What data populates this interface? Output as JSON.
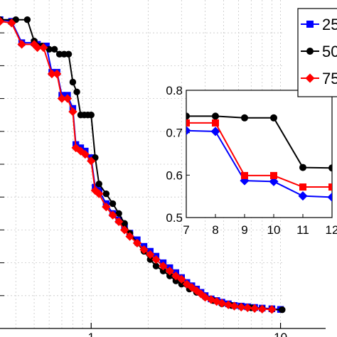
{
  "chart_data": [
    {
      "id": "main",
      "type": "line",
      "x_scale": "log",
      "x_ticks": [
        {
          "value": 1,
          "label": "1"
        },
        {
          "value": 10,
          "label": "10"
        }
      ],
      "x_range": [
        0.33,
        10.3
      ],
      "y_range": [
        0,
        1.0
      ],
      "grid": true,
      "legend": {
        "placement": "top-right",
        "entries": [
          {
            "label": "25",
            "series": 0
          },
          {
            "label": "50",
            "series": 1
          },
          {
            "label": "75",
            "series": 2
          }
        ]
      },
      "series": [
        {
          "color": "#0000ff",
          "marker": "square",
          "points": [
            [
              0.33,
              0.94
            ],
            [
              0.38,
              0.935
            ],
            [
              0.43,
              0.87
            ],
            [
              0.5,
              0.87
            ],
            [
              0.52,
              0.865
            ],
            [
              0.58,
              0.86
            ],
            [
              0.62,
              0.78
            ],
            [
              0.66,
              0.78
            ],
            [
              0.7,
              0.71
            ],
            [
              0.75,
              0.71
            ],
            [
              0.8,
              0.67
            ],
            [
              0.83,
              0.56
            ],
            [
              0.88,
              0.55
            ],
            [
              0.93,
              0.54
            ],
            [
              1.0,
              0.52
            ],
            [
              1.05,
              0.43
            ],
            [
              1.1,
              0.42
            ],
            [
              1.2,
              0.38
            ],
            [
              1.3,
              0.35
            ],
            [
              1.4,
              0.33
            ],
            [
              1.5,
              0.31
            ],
            [
              1.6,
              0.29
            ],
            [
              1.75,
              0.27
            ],
            [
              1.9,
              0.25
            ],
            [
              2.05,
              0.235
            ],
            [
              2.2,
              0.22
            ],
            [
              2.4,
              0.2
            ],
            [
              2.6,
              0.185
            ],
            [
              2.8,
              0.17
            ],
            [
              3.0,
              0.155
            ],
            [
              3.2,
              0.14
            ],
            [
              3.4,
              0.13
            ],
            [
              3.6,
              0.12
            ],
            [
              3.8,
              0.11
            ],
            [
              4.0,
              0.1
            ],
            [
              4.3,
              0.09
            ],
            [
              4.6,
              0.085
            ],
            [
              4.9,
              0.08
            ],
            [
              5.3,
              0.075
            ],
            [
              5.7,
              0.07
            ],
            [
              6.2,
              0.068
            ],
            [
              6.7,
              0.066
            ],
            [
              7.3,
              0.064
            ],
            [
              8.0,
              0.062
            ],
            [
              9.0,
              0.06
            ],
            [
              10.0,
              0.058
            ]
          ]
        },
        {
          "color": "#000000",
          "marker": "circle",
          "points": [
            [
              0.33,
              0.94
            ],
            [
              0.4,
              0.94
            ],
            [
              0.46,
              0.94
            ],
            [
              0.5,
              0.875
            ],
            [
              0.55,
              0.86
            ],
            [
              0.6,
              0.85
            ],
            [
              0.64,
              0.85
            ],
            [
              0.68,
              0.835
            ],
            [
              0.72,
              0.835
            ],
            [
              0.76,
              0.835
            ],
            [
              0.8,
              0.75
            ],
            [
              0.84,
              0.72
            ],
            [
              0.88,
              0.65
            ],
            [
              0.92,
              0.65
            ],
            [
              0.96,
              0.65
            ],
            [
              1.0,
              0.65
            ],
            [
              1.05,
              0.52
            ],
            [
              1.1,
              0.44
            ],
            [
              1.2,
              0.41
            ],
            [
              1.3,
              0.38
            ],
            [
              1.4,
              0.35
            ],
            [
              1.5,
              0.32
            ],
            [
              1.6,
              0.29
            ],
            [
              1.75,
              0.26
            ],
            [
              1.9,
              0.235
            ],
            [
              2.05,
              0.21
            ],
            [
              2.2,
              0.19
            ],
            [
              2.4,
              0.175
            ],
            [
              2.6,
              0.16
            ],
            [
              2.8,
              0.145
            ],
            [
              3.0,
              0.135
            ],
            [
              3.3,
              0.12
            ],
            [
              3.6,
              0.11
            ],
            [
              4.0,
              0.095
            ],
            [
              4.4,
              0.085
            ],
            [
              4.9,
              0.075
            ],
            [
              5.5,
              0.07
            ],
            [
              6.2,
              0.066
            ],
            [
              7.0,
              0.063
            ],
            [
              8.0,
              0.06
            ],
            [
              9.0,
              0.058
            ],
            [
              10.2,
              0.057
            ]
          ]
        },
        {
          "color": "#ff0000",
          "marker": "diamond",
          "points": [
            [
              0.33,
              0.935
            ],
            [
              0.38,
              0.93
            ],
            [
              0.43,
              0.865
            ],
            [
              0.5,
              0.865
            ],
            [
              0.52,
              0.855
            ],
            [
              0.56,
              0.855
            ],
            [
              0.62,
              0.775
            ],
            [
              0.66,
              0.775
            ],
            [
              0.7,
              0.7
            ],
            [
              0.75,
              0.7
            ],
            [
              0.8,
              0.66
            ],
            [
              0.83,
              0.55
            ],
            [
              0.88,
              0.54
            ],
            [
              0.93,
              0.53
            ],
            [
              1.0,
              0.51
            ],
            [
              1.05,
              0.42
            ],
            [
              1.1,
              0.41
            ],
            [
              1.2,
              0.37
            ],
            [
              1.3,
              0.345
            ],
            [
              1.4,
              0.325
            ],
            [
              1.5,
              0.3
            ],
            [
              1.6,
              0.28
            ],
            [
              1.75,
              0.26
            ],
            [
              1.9,
              0.24
            ],
            [
              2.05,
              0.225
            ],
            [
              2.2,
              0.21
            ],
            [
              2.4,
              0.19
            ],
            [
              2.6,
              0.175
            ],
            [
              2.8,
              0.16
            ],
            [
              3.0,
              0.15
            ],
            [
              3.2,
              0.135
            ],
            [
              3.4,
              0.125
            ],
            [
              3.6,
              0.115
            ],
            [
              3.8,
              0.105
            ],
            [
              4.0,
              0.095
            ],
            [
              4.3,
              0.088
            ],
            [
              4.6,
              0.082
            ],
            [
              4.9,
              0.077
            ],
            [
              5.3,
              0.072
            ],
            [
              5.7,
              0.068
            ],
            [
              6.2,
              0.065
            ],
            [
              6.7,
              0.063
            ],
            [
              7.3,
              0.061
            ],
            [
              8.0,
              0.059
            ],
            [
              9.0,
              0.058
            ]
          ]
        }
      ]
    },
    {
      "id": "inset",
      "type": "line",
      "x_ticks": [
        7,
        8,
        9,
        10,
        11,
        12
      ],
      "y_ticks": [
        0.5,
        0.6,
        0.7,
        0.8
      ],
      "x_range": [
        7,
        12
      ],
      "y_range": [
        0.5,
        0.8
      ],
      "grid": false,
      "series": [
        {
          "color": "#0000ff",
          "marker": "diamond",
          "x": [
            7,
            8,
            9,
            10,
            11,
            12
          ],
          "y": [
            0.705,
            0.703,
            0.587,
            0.585,
            0.551,
            0.548
          ]
        },
        {
          "color": "#000000",
          "marker": "circle",
          "x": [
            7,
            8,
            9,
            10,
            11,
            12
          ],
          "y": [
            0.739,
            0.739,
            0.735,
            0.735,
            0.618,
            0.617
          ]
        },
        {
          "color": "#ff0000",
          "marker": "square",
          "x": [
            7,
            8,
            9,
            10,
            11,
            12
          ],
          "y": [
            0.723,
            0.723,
            0.599,
            0.599,
            0.572,
            0.572
          ]
        }
      ]
    }
  ]
}
